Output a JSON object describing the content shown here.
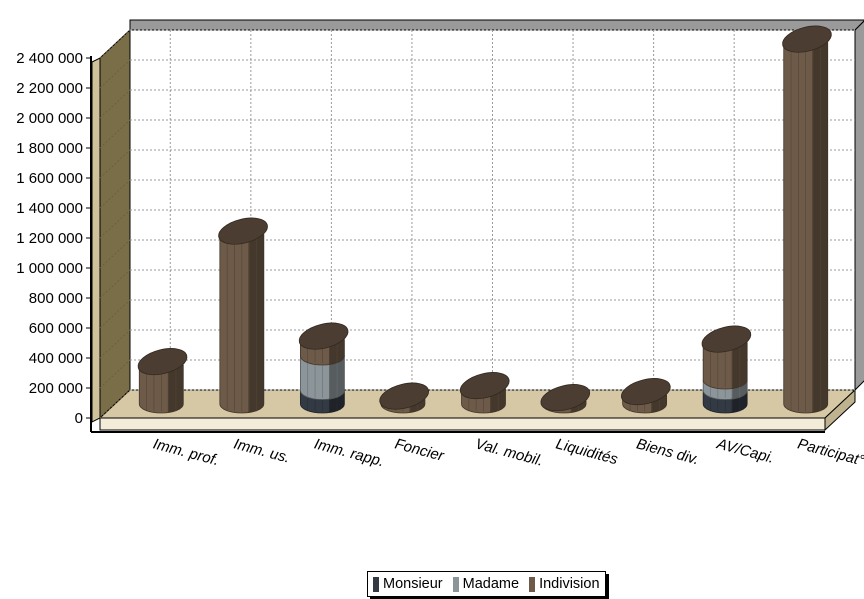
{
  "chart_data": {
    "type": "bar",
    "stacked": true,
    "three_d": true,
    "categories": [
      "Imm. prof.",
      "Imm. us.",
      "Imm. rapp.",
      "Foncier",
      "Val. mobil.",
      "Liquidités",
      "Biens div.",
      "AV/Capi.",
      "Participat°"
    ],
    "series": [
      {
        "name": "Monsieur",
        "color": "#333a44",
        "values": [
          0,
          0,
          90000,
          0,
          0,
          0,
          0,
          90000,
          0
        ]
      },
      {
        "name": "Madame",
        "color": "#8c959a",
        "values": [
          0,
          0,
          230000,
          0,
          0,
          0,
          0,
          70000,
          0
        ]
      },
      {
        "name": "Indivision",
        "color": "#6e5a48",
        "values": [
          260000,
          1130000,
          110000,
          30000,
          100000,
          20000,
          60000,
          250000,
          2410000
        ]
      }
    ],
    "y_ticks": [
      "0",
      "200 000",
      "400 000",
      "600 000",
      "800 000",
      "1 000 000",
      "1 200 000",
      "1 400 000",
      "1 600 000",
      "1 800 000",
      "2 000 000",
      "2 200 000",
      "2 400 000"
    ],
    "ylim": [
      0,
      2400000
    ],
    "grid": true,
    "legend_position": "bottom-center",
    "wall_color": "#ffffff",
    "floor_color": "#d6c8a5",
    "side_wall_color": "#7a6e48"
  },
  "legend": {
    "items": [
      {
        "label": "Monsieur",
        "color": "#333a44"
      },
      {
        "label": "Madame",
        "color": "#8c959a"
      },
      {
        "label": "Indivision",
        "color": "#6e5a48"
      }
    ]
  }
}
